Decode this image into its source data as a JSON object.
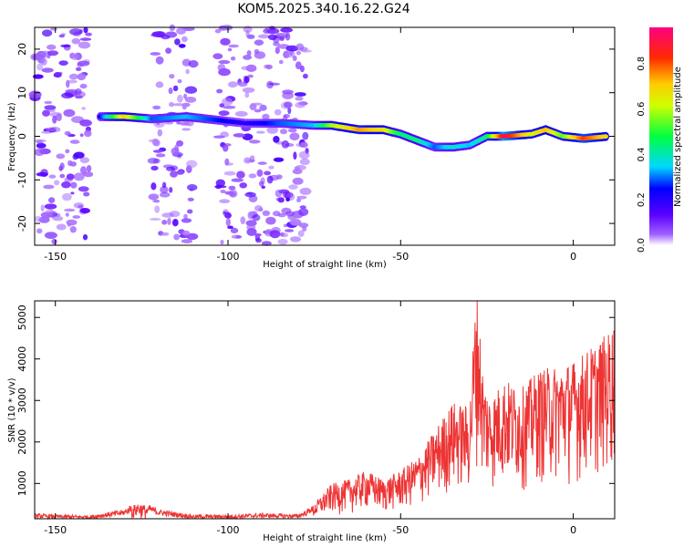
{
  "title": "KOM5.2025.340.16.22.G24",
  "chart_data": [
    {
      "type": "heatmap",
      "name": "spectrogram",
      "xlabel": "Height of straight line (km)",
      "ylabel": "Frequency (Hz)",
      "xlim": [
        -156,
        12
      ],
      "ylim": [
        -25,
        25
      ],
      "xticks": [
        -150,
        -100,
        -50,
        0
      ],
      "yticks": [
        -20,
        -10,
        0,
        10,
        20
      ],
      "colorbar": {
        "label": "Normalized spectral amplitude",
        "range": [
          0,
          0.96
        ],
        "ticks": [
          0.0,
          0.2,
          0.4,
          0.6,
          0.8
        ]
      },
      "noise_regions_km": [
        [
          -156,
          -140
        ],
        [
          -122,
          -110
        ],
        [
          -103,
          -77
        ]
      ],
      "trace": [
        {
          "x": -137,
          "y": 4.5,
          "amp": 0.25
        },
        {
          "x": -130,
          "y": 4.5,
          "amp": 0.72
        },
        {
          "x": -122,
          "y": 4.0,
          "amp": 0.3
        },
        {
          "x": -112,
          "y": 4.5,
          "amp": 0.35
        },
        {
          "x": -95,
          "y": 3.0,
          "amp": 0.2
        },
        {
          "x": -85,
          "y": 3.0,
          "amp": 0.3
        },
        {
          "x": -75,
          "y": 2.5,
          "amp": 0.35
        },
        {
          "x": -70,
          "y": 2.5,
          "amp": 0.6
        },
        {
          "x": -62,
          "y": 1.5,
          "amp": 0.78
        },
        {
          "x": -55,
          "y": 1.5,
          "amp": 0.7
        },
        {
          "x": -50,
          "y": 0.5,
          "amp": 0.45
        },
        {
          "x": -45,
          "y": -1.0,
          "amp": 0.45
        },
        {
          "x": -40,
          "y": -2.5,
          "amp": 0.3
        },
        {
          "x": -35,
          "y": -2.5,
          "amp": 0.4
        },
        {
          "x": -30,
          "y": -2.0,
          "amp": 0.35
        },
        {
          "x": -25,
          "y": 0.0,
          "amp": 0.45
        },
        {
          "x": -20,
          "y": 0.0,
          "amp": 0.94
        },
        {
          "x": -12,
          "y": 0.5,
          "amp": 0.65
        },
        {
          "x": -8,
          "y": 1.5,
          "amp": 0.75
        },
        {
          "x": -3,
          "y": 0.0,
          "amp": 0.55
        },
        {
          "x": 3,
          "y": -0.5,
          "amp": 0.85
        },
        {
          "x": 10,
          "y": 0.0,
          "amp": 0.7
        }
      ]
    },
    {
      "type": "line",
      "name": "snr",
      "xlabel": "Height of straight line (km)",
      "ylabel": "SNR (10 * v/v)",
      "xlim": [
        -156,
        12
      ],
      "ylim": [
        150,
        5400
      ],
      "xticks": [
        -150,
        -100,
        -50,
        0
      ],
      "yticks": [
        1000,
        2000,
        3000,
        4000,
        5000
      ],
      "color": "#ee3333",
      "series": [
        {
          "name": "SNR",
          "x": [
            -156,
            -150,
            -140,
            -130,
            -126,
            -120,
            -110,
            -100,
            -90,
            -80,
            -77,
            -70,
            -65,
            -60,
            -55,
            -50,
            -45,
            -40,
            -35,
            -30,
            -28,
            -26,
            -24,
            -20,
            -15,
            -10,
            -5,
            0,
            5,
            8,
            10,
            12
          ],
          "y": [
            220,
            200,
            190,
            300,
            500,
            300,
            200,
            200,
            230,
            210,
            300,
            900,
            1000,
            1200,
            1000,
            1200,
            1500,
            2100,
            2700,
            2600,
            5400,
            3200,
            2800,
            3200,
            3000,
            3400,
            3500,
            3600,
            3900,
            4100,
            4200,
            4500
          ]
        }
      ]
    }
  ]
}
